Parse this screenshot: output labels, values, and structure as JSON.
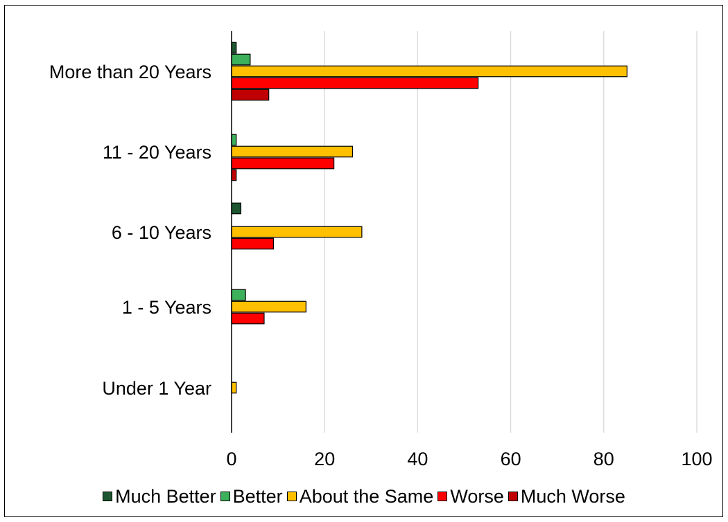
{
  "chart_data": {
    "type": "bar",
    "orientation": "horizontal",
    "categories": [
      "More than 20 Years",
      "11 - 20 Years",
      "6 - 10 Years",
      "1 - 5 Years",
      "Under 1 Year"
    ],
    "series": [
      {
        "name": "Much Better",
        "color": "#1e5631",
        "values": [
          1,
          0,
          2,
          0,
          0
        ]
      },
      {
        "name": "Better",
        "color": "#3cb05a",
        "values": [
          4,
          1,
          0,
          3,
          0
        ]
      },
      {
        "name": "About the Same",
        "color": "#ffc000",
        "values": [
          85,
          26,
          28,
          16,
          1
        ]
      },
      {
        "name": "Worse",
        "color": "#ff0000",
        "values": [
          53,
          22,
          9,
          7,
          0
        ]
      },
      {
        "name": "Much Worse",
        "color": "#c00000",
        "values": [
          8,
          1,
          0,
          0,
          0
        ]
      }
    ],
    "xlim": [
      0,
      100
    ],
    "xticks": [
      "0",
      "20",
      "40",
      "60",
      "80",
      "100"
    ],
    "grid": true,
    "legend_position": "bottom",
    "title": "",
    "xlabel": "",
    "ylabel": ""
  }
}
